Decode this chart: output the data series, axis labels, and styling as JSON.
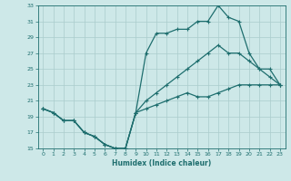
{
  "xlabel": "Humidex (Indice chaleur)",
  "bg_color": "#cde8e8",
  "grid_color": "#aacccc",
  "line_color": "#1e6e6e",
  "xlim": [
    -0.5,
    23.5
  ],
  "ylim": [
    15,
    33
  ],
  "xticks": [
    0,
    1,
    2,
    3,
    4,
    5,
    6,
    7,
    8,
    9,
    10,
    11,
    12,
    13,
    14,
    15,
    16,
    17,
    18,
    19,
    20,
    21,
    22,
    23
  ],
  "yticks": [
    15,
    17,
    19,
    21,
    23,
    25,
    27,
    29,
    31,
    33
  ],
  "line1_x": [
    0,
    1,
    2,
    3,
    4,
    5,
    6,
    7,
    8,
    9,
    10,
    11,
    12,
    13,
    14,
    15,
    16,
    17,
    18,
    19,
    20,
    21,
    22,
    23
  ],
  "line1_y": [
    20,
    19.5,
    18.5,
    18.5,
    17,
    16.5,
    15.5,
    15,
    15,
    19.5,
    27,
    29.5,
    29.5,
    30,
    30,
    31,
    31,
    33,
    31.5,
    31,
    27,
    25,
    24,
    23
  ],
  "line2_x": [
    0,
    1,
    2,
    3,
    4,
    5,
    6,
    7,
    8,
    9,
    10,
    11,
    12,
    13,
    14,
    15,
    16,
    17,
    18,
    19,
    20,
    21,
    22,
    23
  ],
  "line2_y": [
    20,
    19.5,
    18.5,
    18.5,
    17,
    16.5,
    15.5,
    15,
    15,
    19.5,
    21,
    22,
    23,
    24,
    25,
    26,
    27,
    28,
    27,
    27,
    26,
    25,
    25,
    23
  ],
  "line3_x": [
    0,
    1,
    2,
    3,
    4,
    5,
    6,
    7,
    8,
    9,
    10,
    11,
    12,
    13,
    14,
    15,
    16,
    17,
    18,
    19,
    20,
    21,
    22,
    23
  ],
  "line3_y": [
    20,
    19.5,
    18.5,
    18.5,
    17,
    16.5,
    15.5,
    15,
    15,
    19.5,
    20,
    20.5,
    21,
    21.5,
    22,
    21.5,
    21.5,
    22,
    22.5,
    23,
    23,
    23,
    23,
    23
  ]
}
